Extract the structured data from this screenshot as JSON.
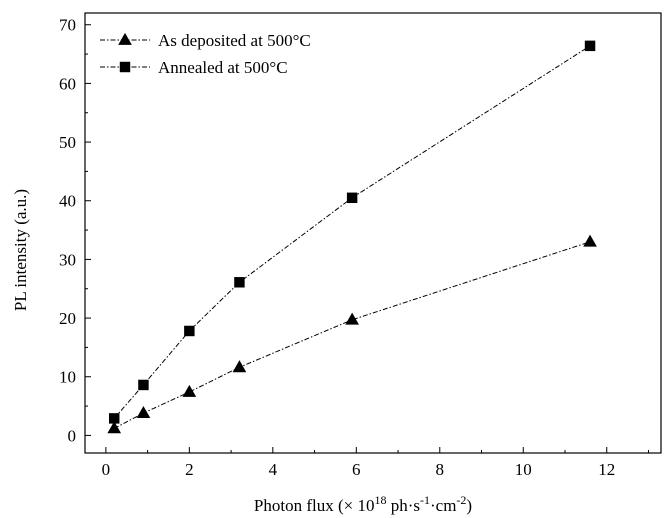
{
  "chart_data": {
    "type": "line",
    "xlabel": "Photon flux (× 10",
    "xlabel_exp": "18",
    "xlabel_units": " ph·s",
    "xlabel_exp2": "-1",
    "xlabel_units2": "·cm",
    "xlabel_exp3": "-2",
    "xlabel_tail": ")",
    "ylabel": "PL intensity (a.u.)",
    "xlim": [
      -0.5,
      13.3
    ],
    "ylim": [
      -3,
      72
    ],
    "xticks": [
      0,
      2,
      4,
      6,
      8,
      10,
      12
    ],
    "yticks": [
      0,
      10,
      20,
      30,
      40,
      50,
      60,
      70
    ],
    "legend_position": "top-left",
    "grid": false,
    "series": [
      {
        "name": "As deposited at 500°C",
        "marker": "triangle",
        "color": "#000000",
        "x": [
          0.2,
          0.9,
          2.0,
          3.2,
          5.9,
          11.6
        ],
        "y": [
          1.2,
          3.8,
          7.4,
          11.6,
          19.7,
          33.0
        ]
      },
      {
        "name": "Annealed at 500°C",
        "marker": "square",
        "color": "#000000",
        "x": [
          0.2,
          0.9,
          2.0,
          3.2,
          5.9,
          11.6
        ],
        "y": [
          2.9,
          8.6,
          17.8,
          26.1,
          40.5,
          66.4
        ]
      }
    ]
  }
}
